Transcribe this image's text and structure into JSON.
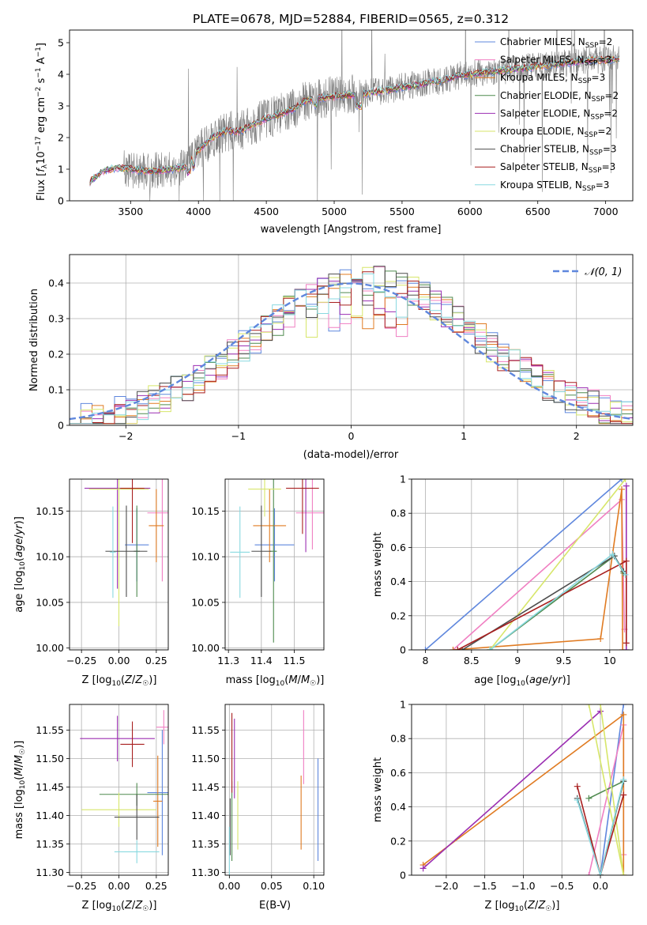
{
  "figure_title": "PLATE=0678, MJD=52884, FIBERID=0565, z=0.312",
  "colors": {
    "Chabrier MILES": "#5f87dd",
    "Salpeter MILES": "#f07fc2",
    "Kroupa MILES": "#e07b22",
    "Chabrier ELODIE": "#4f8a4f",
    "Salpeter ELODIE": "#9b2fb2",
    "Kroupa ELODIE": "#d7e66a",
    "Chabrier STELIB": "#4d4d4d",
    "Salpeter STELIB": "#a81f1f",
    "Kroupa STELIB": "#89d9e0",
    "data": "#808080",
    "normal": "#5f87dd"
  },
  "chart_data": [
    {
      "id": "spectrum",
      "type": "line",
      "title": "PLATE=0678, MJD=52884, FIBERID=0565, z=0.312",
      "xlabel": "wavelength [Angstrom, rest frame]",
      "ylabel": "Flux [f_λ 10^-17 erg cm^-2 s^-1 A^-1]",
      "xlim": [
        3050,
        7200
      ],
      "ylim": [
        0,
        5.4
      ],
      "xticks": [
        3500,
        4000,
        4500,
        5000,
        5500,
        6000,
        6500,
        7000
      ],
      "yticks": [
        0,
        1,
        2,
        3,
        4,
        5
      ],
      "legend_position": "top-right",
      "legend": [
        {
          "name": "Chabrier MILES",
          "nssp": 2
        },
        {
          "name": "Salpeter MILES",
          "nssp": 3
        },
        {
          "name": "Kroupa MILES",
          "nssp": 3
        },
        {
          "name": "Chabrier ELODIE",
          "nssp": 2
        },
        {
          "name": "Salpeter ELODIE",
          "nssp": 2
        },
        {
          "name": "Kroupa ELODIE",
          "nssp": 2
        },
        {
          "name": "Chabrier STELIB",
          "nssp": 3
        },
        {
          "name": "Salpeter STELIB",
          "nssp": 3
        },
        {
          "name": "Kroupa STELIB",
          "nssp": 3
        }
      ],
      "continuum": [
        [
          3200,
          0.6
        ],
        [
          3300,
          0.95
        ],
        [
          3400,
          1.05
        ],
        [
          3500,
          1.0
        ],
        [
          3600,
          0.95
        ],
        [
          3700,
          0.95
        ],
        [
          3800,
          1.0
        ],
        [
          3900,
          1.05
        ],
        [
          4000,
          1.6
        ],
        [
          4100,
          2.0
        ],
        [
          4200,
          2.2
        ],
        [
          4300,
          2.2
        ],
        [
          4400,
          2.4
        ],
        [
          4500,
          2.6
        ],
        [
          4600,
          2.75
        ],
        [
          4700,
          2.9
        ],
        [
          4800,
          3.2
        ],
        [
          4900,
          3.25
        ],
        [
          5000,
          3.3
        ],
        [
          5100,
          3.35
        ],
        [
          5200,
          3.35
        ],
        [
          5300,
          3.45
        ],
        [
          5400,
          3.5
        ],
        [
          5500,
          3.6
        ],
        [
          5600,
          3.65
        ],
        [
          5700,
          3.75
        ],
        [
          5800,
          3.8
        ],
        [
          5900,
          3.95
        ],
        [
          6000,
          4.0
        ],
        [
          6100,
          4.05
        ],
        [
          6200,
          4.1
        ],
        [
          6300,
          4.15
        ],
        [
          6400,
          4.2
        ],
        [
          6500,
          4.25
        ],
        [
          6600,
          4.3
        ],
        [
          6700,
          4.35
        ],
        [
          6800,
          4.4
        ],
        [
          6900,
          4.45
        ],
        [
          7000,
          4.45
        ],
        [
          7100,
          4.5
        ]
      ]
    },
    {
      "id": "residuals",
      "type": "line",
      "xlabel": "(data-model)/error",
      "ylabel": "Normed distribution",
      "xlim": [
        -2.5,
        2.5
      ],
      "ylim": [
        0,
        0.48
      ],
      "xticks": [
        -2,
        -1,
        0,
        1,
        2
      ],
      "yticks": [
        0.0,
        0.1,
        0.2,
        0.3,
        0.4
      ],
      "legend": "𝒩(0, 1)",
      "legend_position": "top-right",
      "grid": true
    },
    {
      "id": "age-vs-Z",
      "type": "scatter",
      "xlabel": "Z [log10(Z/Z☉)]",
      "ylabel": "age  [log10(age/yr)]",
      "xlim": [
        -0.33,
        0.33
      ],
      "ylim": [
        9.998,
        10.185
      ],
      "xticks": [
        -0.25,
        0.0,
        0.25
      ],
      "xticklabels": [
        "−0.25",
        "0.00",
        "0.25"
      ],
      "yticks": [
        10.0,
        10.05,
        10.1,
        10.15
      ],
      "yticklabels": [
        "10.00",
        "10.05",
        "10.10",
        "10.15"
      ],
      "grid": true,
      "points": [
        {
          "s": "Chabrier MILES",
          "x": 0.12,
          "y": 10.113,
          "xerr": 0.08,
          "yerr": 0.04
        },
        {
          "s": "Salpeter MILES",
          "x": 0.29,
          "y": 10.148,
          "xerr": 0.1,
          "yerr": 0.075
        },
        {
          "s": "Kroupa MILES",
          "x": 0.25,
          "y": 10.134,
          "xerr": 0.05,
          "yerr": 0.04
        },
        {
          "s": "Chabrier ELODIE",
          "x": 0.12,
          "y": 10.106,
          "xerr": 0.02,
          "yerr": 0.05
        },
        {
          "s": "Salpeter ELODIE",
          "x": -0.01,
          "y": 10.175,
          "xerr": 0.22,
          "yerr": 0.11
        },
        {
          "s": "Kroupa ELODIE",
          "x": 0.0,
          "y": 10.174,
          "xerr": 0.2,
          "yerr": 0.15
        },
        {
          "s": "Chabrier STELIB",
          "x": 0.05,
          "y": 10.106,
          "xerr": 0.14,
          "yerr": 0.05
        },
        {
          "s": "Salpeter STELIB",
          "x": 0.09,
          "y": 10.175,
          "xerr": 0.08,
          "yerr": 0.06
        },
        {
          "s": "Kroupa STELIB",
          "x": -0.04,
          "y": 10.105,
          "xerr": 0.02,
          "yerr": 0.05
        }
      ]
    },
    {
      "id": "age-vs-mass",
      "type": "scatter",
      "xlabel": "mass [log10(M/M☉)]",
      "ylabel": "",
      "xlim": [
        11.29,
        11.59
      ],
      "ylim": [
        9.998,
        10.185
      ],
      "xticks": [
        11.3,
        11.4,
        11.5
      ],
      "xticklabels": [
        "11.3",
        "11.4",
        "11.5"
      ],
      "yticks": [
        10.0,
        10.05,
        10.1,
        10.15
      ],
      "yticklabels": [
        "10.00",
        "10.05",
        "10.10",
        "10.15"
      ],
      "grid": true,
      "points": [
        {
          "s": "Chabrier MILES",
          "x": 11.44,
          "y": 10.113,
          "xerr": 0.06,
          "yerr": 0.04
        },
        {
          "s": "Salpeter MILES",
          "x": 11.555,
          "y": 10.148,
          "xerr": 0.05,
          "yerr": 0.04
        },
        {
          "s": "Kroupa MILES",
          "x": 11.425,
          "y": 10.134,
          "xerr": 0.05,
          "yerr": 0.04
        },
        {
          "s": "Chabrier ELODIE",
          "x": 11.437,
          "y": 10.106,
          "xerr": 0.01,
          "yerr": 0.1
        },
        {
          "s": "Salpeter ELODIE",
          "x": 11.535,
          "y": 10.175,
          "xerr": 0.01,
          "yerr": 0.07
        },
        {
          "s": "Kroupa ELODIE",
          "x": 11.41,
          "y": 10.174,
          "xerr": 0.05,
          "yerr": 0.03
        },
        {
          "s": "Chabrier STELIB",
          "x": 11.4,
          "y": 10.106,
          "xerr": 0.03,
          "yerr": 0.05
        },
        {
          "s": "Salpeter STELIB",
          "x": 11.525,
          "y": 10.175,
          "xerr": 0.05,
          "yerr": 0.05
        },
        {
          "s": "Kroupa STELIB",
          "x": 11.335,
          "y": 10.105,
          "xerr": 0.03,
          "yerr": 0.05
        }
      ]
    },
    {
      "id": "weight-vs-age",
      "type": "line",
      "xlabel": "age  [log10(age/yr)]",
      "ylabel": "mass weight",
      "xlim": [
        7.85,
        10.25
      ],
      "ylim": [
        0,
        1.0
      ],
      "xticks": [
        8.0,
        8.5,
        9.0,
        9.5,
        10.0
      ],
      "yticks": [
        0.0,
        0.2,
        0.4,
        0.6,
        0.8,
        1.0
      ],
      "grid": true,
      "series": [
        {
          "s": "Chabrier MILES",
          "points": [
            [
              8.0,
              0.0
            ],
            [
              10.13,
              1.0
            ]
          ]
        },
        {
          "s": "Salpeter MILES",
          "points": [
            [
              8.3,
              0.0
            ],
            [
              10.13,
              0.88
            ],
            [
              10.16,
              0.12
            ]
          ]
        },
        {
          "s": "Kroupa MILES",
          "points": [
            [
              8.3,
              0.0
            ],
            [
              9.9,
              0.065
            ],
            [
              10.13,
              0.94
            ],
            [
              10.14,
              0.0
            ]
          ]
        },
        {
          "s": "Chabrier ELODIE",
          "points": [
            [
              8.7,
              0.0
            ],
            [
              10.05,
              0.55
            ],
            [
              10.15,
              0.45
            ]
          ]
        },
        {
          "s": "Salpeter ELODIE",
          "points": [
            [
              10.18,
              0.0
            ],
            [
              10.18,
              0.96
            ]
          ]
        },
        {
          "s": "Kroupa ELODIE",
          "points": [
            [
              8.7,
              0.0
            ],
            [
              10.17,
              1.0
            ],
            [
              8.7,
              0.0
            ]
          ]
        },
        {
          "s": "Chabrier STELIB",
          "points": [
            [
              8.4,
              0.0
            ],
            [
              10.05,
              0.55
            ],
            [
              10.15,
              0.46
            ]
          ]
        },
        {
          "s": "Salpeter STELIB",
          "points": [
            [
              8.35,
              0.0
            ],
            [
              10.18,
              0.52
            ],
            [
              10.18,
              0.04
            ]
          ]
        },
        {
          "s": "Kroupa STELIB",
          "points": [
            [
              8.7,
              0.0
            ],
            [
              10.03,
              0.56
            ],
            [
              10.17,
              0.44
            ]
          ]
        }
      ]
    },
    {
      "id": "mass-vs-Z",
      "type": "scatter",
      "xlabel": "Z [log10(Z/Z☉)]",
      "ylabel": "mass [log10(M/M☉)]",
      "xlim": [
        -0.33,
        0.33
      ],
      "ylim": [
        11.295,
        11.595
      ],
      "xticks": [
        -0.25,
        0.0,
        0.25
      ],
      "xticklabels": [
        "−0.25",
        "0.00",
        "0.25"
      ],
      "yticks": [
        11.3,
        11.35,
        11.4,
        11.45,
        11.5,
        11.55
      ],
      "yticklabels": [
        "11.30",
        "11.35",
        "11.40",
        "11.45",
        "11.50",
        "11.55"
      ],
      "grid": true,
      "points": [
        {
          "s": "Chabrier MILES",
          "x": 0.29,
          "y": 11.44,
          "xerr": 0.1,
          "yerr": 0.11
        },
        {
          "s": "Salpeter MILES",
          "x": 0.3,
          "y": 11.555,
          "xerr": 0.05,
          "yerr": 0.03
        },
        {
          "s": "Kroupa MILES",
          "x": 0.26,
          "y": 11.425,
          "xerr": 0.03,
          "yerr": 0.08
        },
        {
          "s": "Chabrier ELODIE",
          "x": 0.12,
          "y": 11.437,
          "xerr": 0.25,
          "yerr": 0.02
        },
        {
          "s": "Salpeter ELODIE",
          "x": -0.01,
          "y": 11.535,
          "xerr": 0.25,
          "yerr": 0.04
        },
        {
          "s": "Kroupa ELODIE",
          "x": 0.0,
          "y": 11.41,
          "xerr": 0.25,
          "yerr": 0.03
        },
        {
          "s": "Chabrier STELIB",
          "x": 0.12,
          "y": 11.397,
          "xerr": 0.15,
          "yerr": 0.04
        },
        {
          "s": "Salpeter STELIB",
          "x": 0.09,
          "y": 11.525,
          "xerr": 0.08,
          "yerr": 0.04
        },
        {
          "s": "Kroupa STELIB",
          "x": 0.12,
          "y": 11.336,
          "xerr": 0.15,
          "yerr": 0.02
        }
      ]
    },
    {
      "id": "mass-vs-EBV",
      "type": "scatter",
      "xlabel": "E(B-V)",
      "ylabel": "",
      "xlim": [
        -0.005,
        0.112
      ],
      "ylim": [
        11.295,
        11.595
      ],
      "xticks": [
        0.0,
        0.05,
        0.1
      ],
      "xticklabels": [
        "0.00",
        "0.05",
        "0.10"
      ],
      "yticks": [
        11.3,
        11.35,
        11.4,
        11.45,
        11.5,
        11.55
      ],
      "yticklabels": [
        "11.30",
        "11.35",
        "11.40",
        "11.45",
        "11.50",
        "11.55"
      ],
      "grid": true,
      "points": [
        {
          "s": "Chabrier MILES",
          "x": 0.105,
          "y": 11.41,
          "xerr": 0.0,
          "yerr": 0.09
        },
        {
          "s": "Salpeter MILES",
          "x": 0.088,
          "y": 11.52,
          "xerr": 0.0,
          "yerr": 0.065
        },
        {
          "s": "Kroupa MILES",
          "x": 0.085,
          "y": 11.405,
          "xerr": 0.0,
          "yerr": 0.065
        },
        {
          "s": "Chabrier ELODIE",
          "x": 0.003,
          "y": 11.39,
          "xerr": 0.0,
          "yerr": 0.07
        },
        {
          "s": "Salpeter ELODIE",
          "x": 0.006,
          "y": 11.5,
          "xerr": 0.0,
          "yerr": 0.07
        },
        {
          "s": "Kroupa ELODIE",
          "x": 0.01,
          "y": 11.4,
          "xerr": 0.0,
          "yerr": 0.06
        },
        {
          "s": "Chabrier STELIB",
          "x": 0.001,
          "y": 11.38,
          "xerr": 0.0,
          "yerr": 0.05
        },
        {
          "s": "Salpeter STELIB",
          "x": 0.003,
          "y": 11.51,
          "xerr": 0.0,
          "yerr": 0.07
        },
        {
          "s": "Kroupa STELIB",
          "x": 0.0,
          "y": 11.33,
          "xerr": 0.0,
          "yerr": 0.05
        }
      ]
    },
    {
      "id": "weight-vs-Z",
      "type": "line",
      "xlabel": "Z [log10(Z/Z☉)]",
      "ylabel": "mass weight",
      "xlim": [
        -2.45,
        0.42
      ],
      "ylim": [
        0,
        1.0
      ],
      "xticks": [
        -2.0,
        -1.5,
        -1.0,
        -0.5,
        0.0
      ],
      "xticklabels": [
        "−2.0",
        "−1.5",
        "−1.0",
        "−0.5",
        "0.0"
      ],
      "yticks": [
        0.0,
        0.2,
        0.4,
        0.6,
        0.8,
        1.0
      ],
      "grid": true,
      "series": [
        {
          "s": "Chabrier MILES",
          "points": [
            [
              0.0,
              0.0
            ],
            [
              0.3,
              1.0
            ]
          ]
        },
        {
          "s": "Salpeter MILES",
          "points": [
            [
              -0.15,
              0.0
            ],
            [
              0.3,
              0.88
            ],
            [
              0.3,
              0.12
            ]
          ]
        },
        {
          "s": "Kroupa MILES",
          "points": [
            [
              -2.3,
              0.06
            ],
            [
              0.3,
              0.94
            ],
            [
              0.3,
              0.0
            ]
          ]
        },
        {
          "s": "Chabrier ELODIE",
          "points": [
            [
              0.0,
              0.0
            ],
            [
              0.3,
              0.55
            ],
            [
              -0.15,
              0.45
            ]
          ]
        },
        {
          "s": "Salpeter ELODIE",
          "points": [
            [
              -2.3,
              0.04
            ],
            [
              0.0,
              0.96
            ]
          ]
        },
        {
          "s": "Kroupa ELODIE",
          "points": [
            [
              0.0,
              1.0
            ],
            [
              0.3,
              0.0
            ],
            [
              -0.15,
              1.0
            ]
          ]
        },
        {
          "s": "Chabrier STELIB",
          "points": [
            [
              -0.3,
              0.45
            ],
            [
              0.0,
              0.0
            ],
            [
              0.3,
              0.55
            ]
          ]
        },
        {
          "s": "Salpeter STELIB",
          "points": [
            [
              -0.3,
              0.52
            ],
            [
              0.0,
              0.0
            ],
            [
              0.3,
              0.47
            ]
          ]
        },
        {
          "s": "Kroupa STELIB",
          "points": [
            [
              -0.3,
              0.44
            ],
            [
              0.0,
              0.0
            ],
            [
              0.3,
              0.56
            ]
          ]
        }
      ]
    }
  ]
}
